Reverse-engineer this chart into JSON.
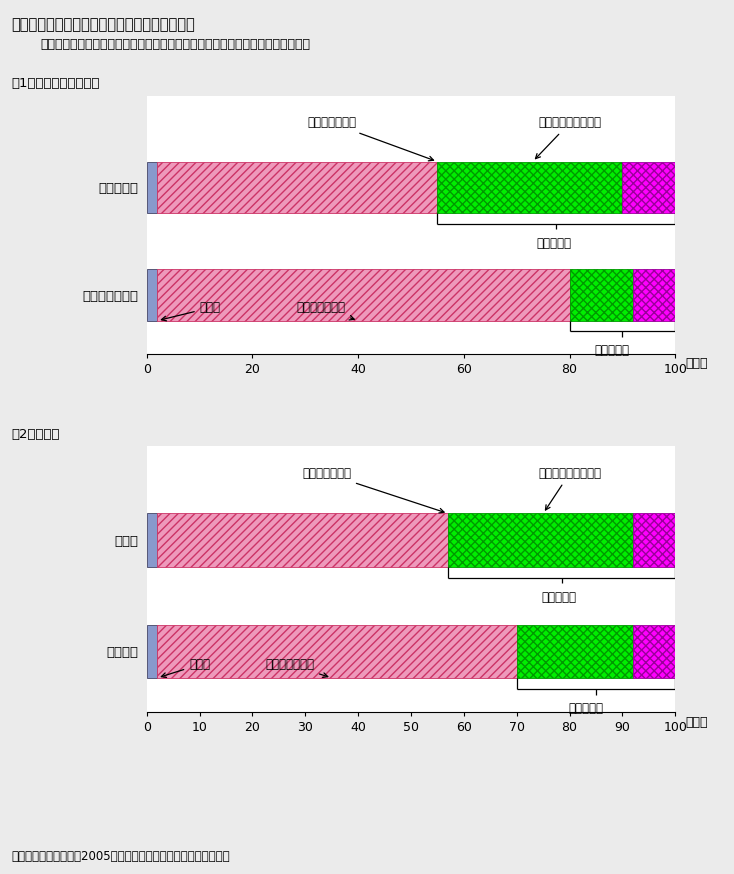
{
  "title": "第２－３－５図　企業のＩＴ投資評価実施状況",
  "subtitle": "　ＣＩＯ設置企業及び製造業において、ＩＴ投資評価を実施している割合が高い",
  "section1_title": "（1）ＣＩＯ設置状況別",
  "section2_title": "（2）業種別",
  "footer": "（備考）経済産業省（2005）「情報処理実態調査」により作成。",
  "chart1": {
    "categories": [
      "ＣＩＯ設置",
      "ＣＩＯ設置せず"
    ],
    "data": [
      [
        2,
        53,
        35,
        10
      ],
      [
        2,
        78,
        12,
        8
      ]
    ]
  },
  "chart2": {
    "categories": [
      "製造業",
      "非製造業"
    ],
    "data": [
      [
        2,
        55,
        35,
        8
      ],
      [
        2,
        68,
        22,
        8
      ]
    ]
  },
  "colors": {
    "blue": "#8899CC",
    "pink_face": "#EE99BB",
    "green_face": "#00EE00",
    "magenta_face": "#FF00FF"
  },
  "label_individual": "個別基準で実施",
  "label_unified": "社内統一基準で実施",
  "label_not_impl": "実施していない",
  "label_other": "その他",
  "label_eval": "評価を実施",
  "xticks1": [
    0,
    20,
    40,
    60,
    80,
    100
  ],
  "xticks2": [
    0,
    10,
    20,
    30,
    40,
    50,
    60,
    70,
    80,
    90,
    100
  ],
  "xlabel": "（％）",
  "bg_color": "#EBEBEB"
}
